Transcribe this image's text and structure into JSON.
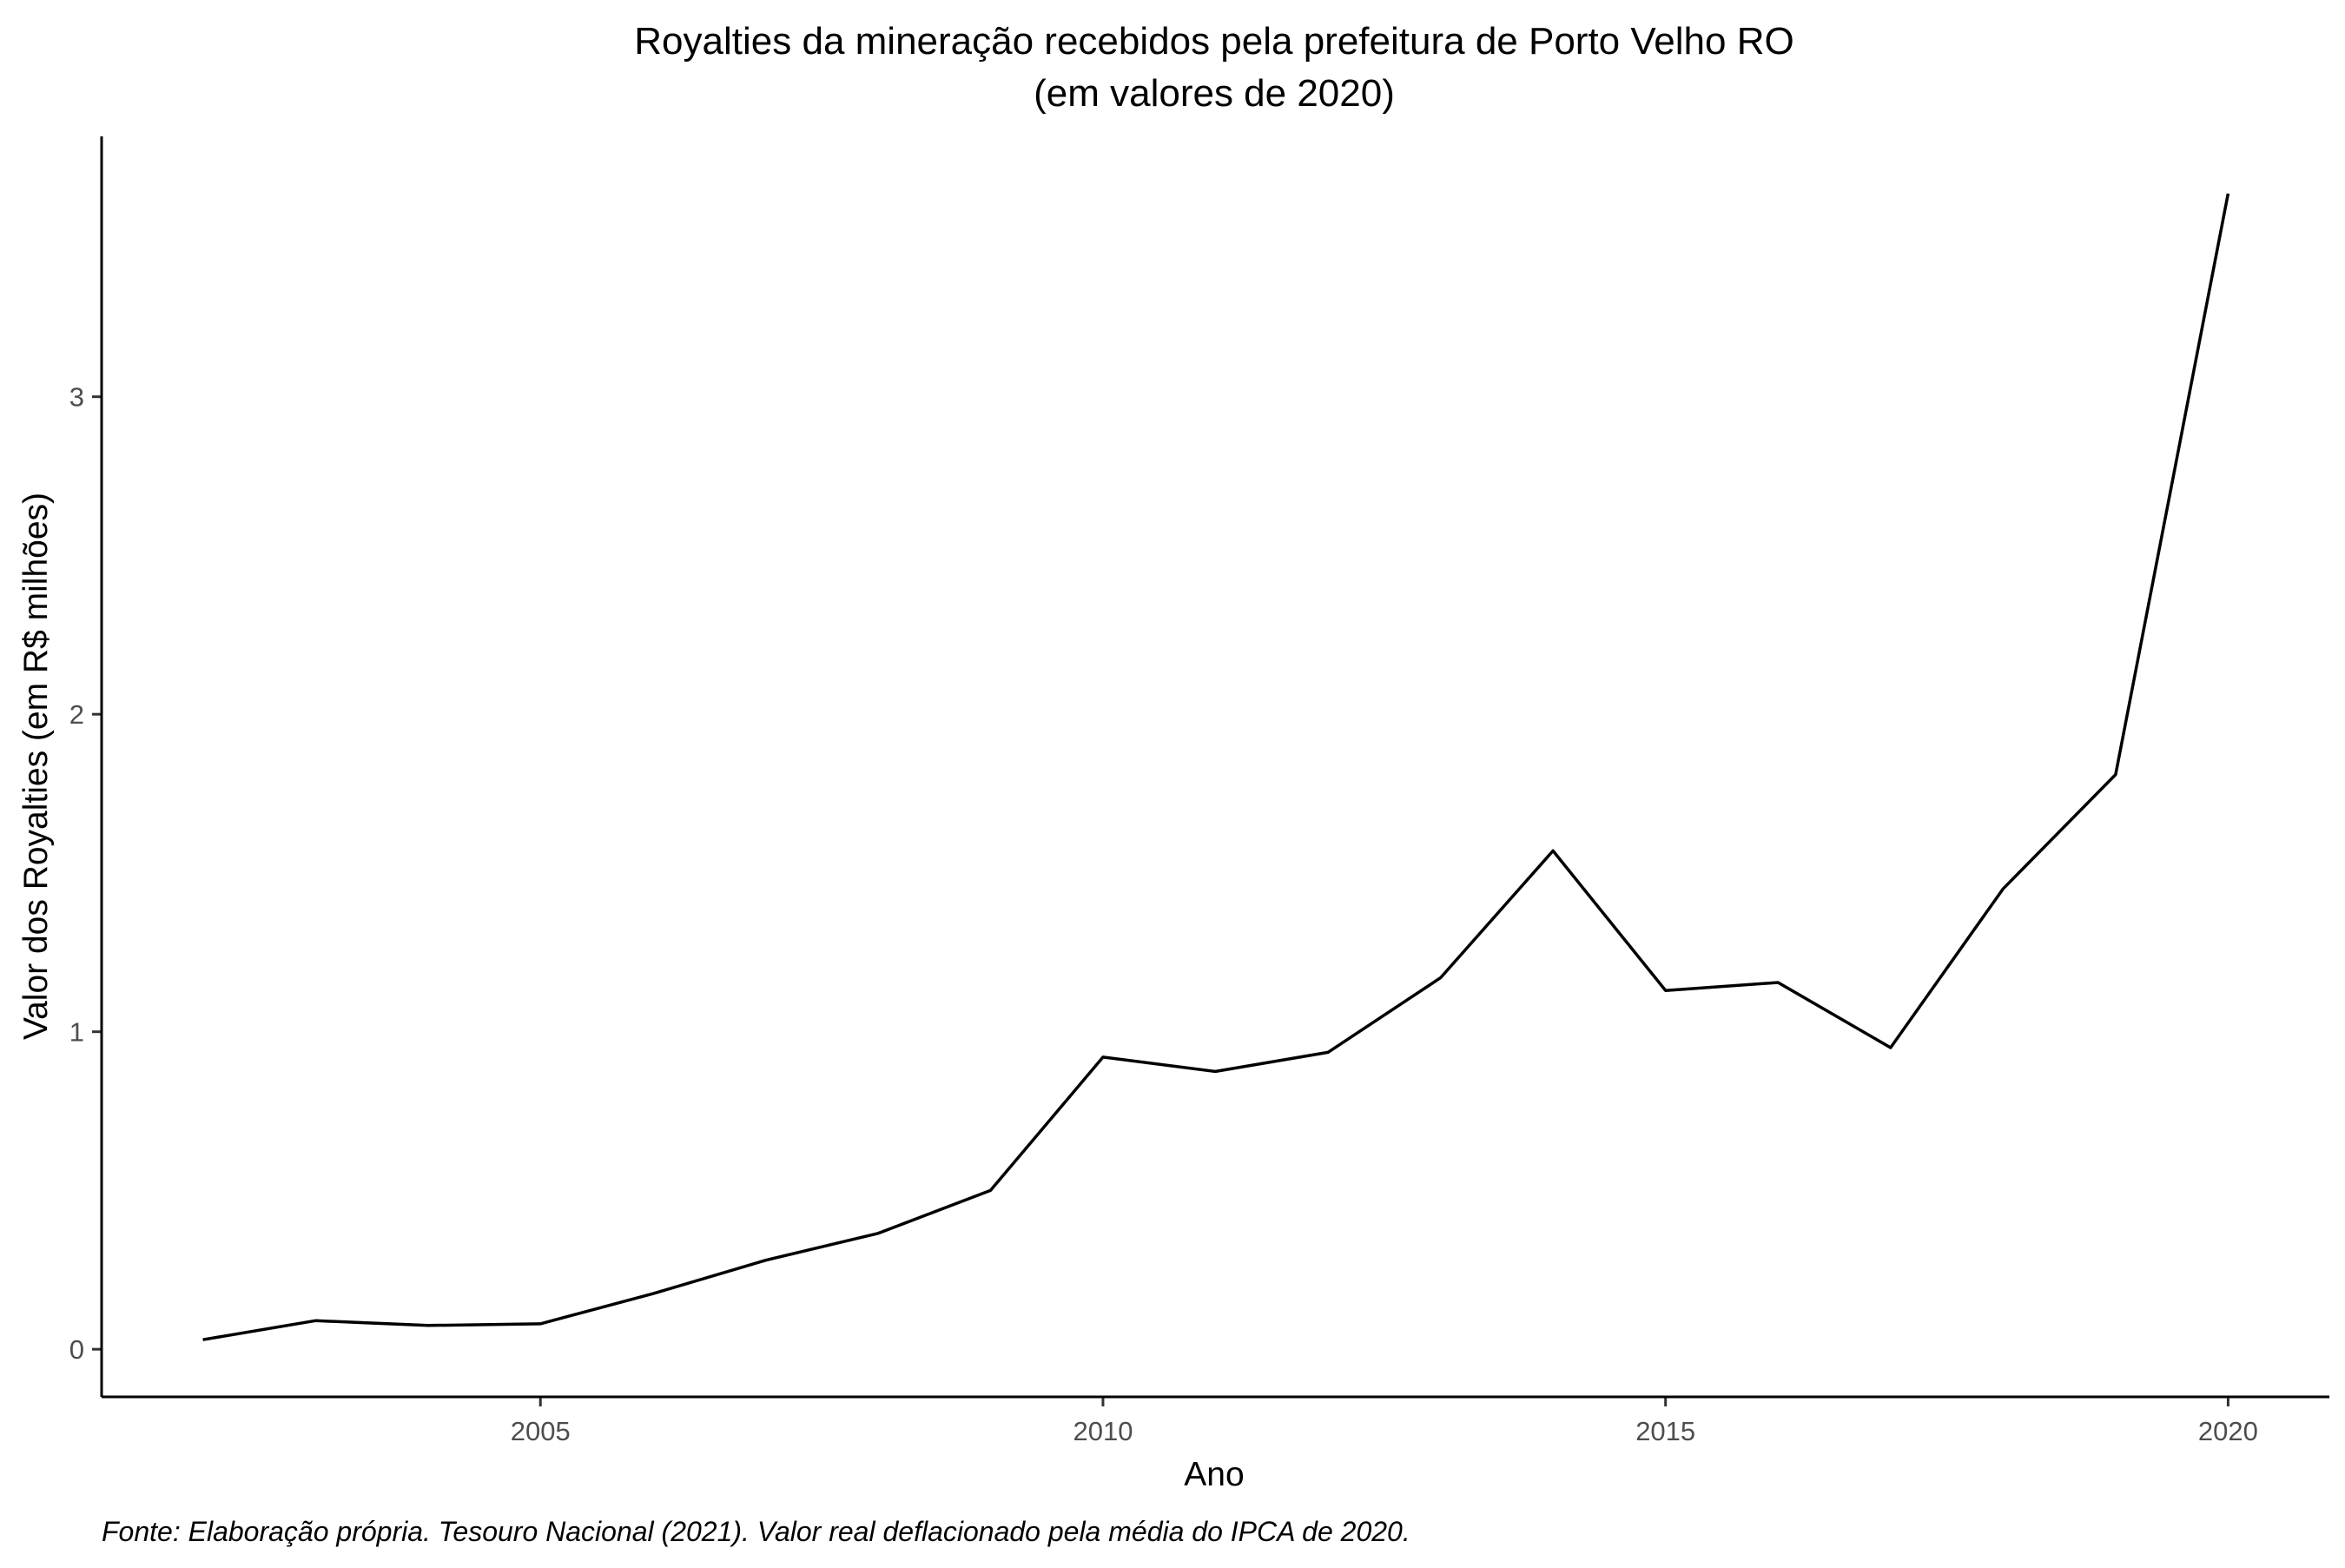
{
  "chart_data": {
    "type": "line",
    "title": "Royalties da mineração recebidos pela prefeitura de Porto Velho RO",
    "subtitle": "(em valores de 2020)",
    "xlabel": "Ano",
    "ylabel": "Valor dos Royalties (em R$ milhões)",
    "caption": "Fonte: Elaboração própria. Tesouro Nacional (2021). Valor real deflacionado pela média do IPCA de 2020.",
    "x_ticks": [
      2005,
      2010,
      2015,
      2020
    ],
    "y_ticks": [
      0,
      1,
      2,
      3
    ],
    "xlim": [
      2001.1,
      2020.9
    ],
    "ylim": [
      -0.15,
      3.82
    ],
    "grid": false,
    "legend": "none",
    "line_color": "#000000",
    "x": [
      2002,
      2003,
      2004,
      2005,
      2006,
      2007,
      2008,
      2009,
      2010,
      2011,
      2012,
      2013,
      2014,
      2015,
      2016,
      2017,
      2018,
      2019,
      2020
    ],
    "values": [
      0.03,
      0.09,
      0.075,
      0.08,
      0.175,
      0.28,
      0.365,
      0.5,
      0.92,
      0.875,
      0.935,
      1.17,
      1.57,
      1.13,
      1.155,
      0.95,
      1.45,
      1.81,
      3.64
    ]
  }
}
